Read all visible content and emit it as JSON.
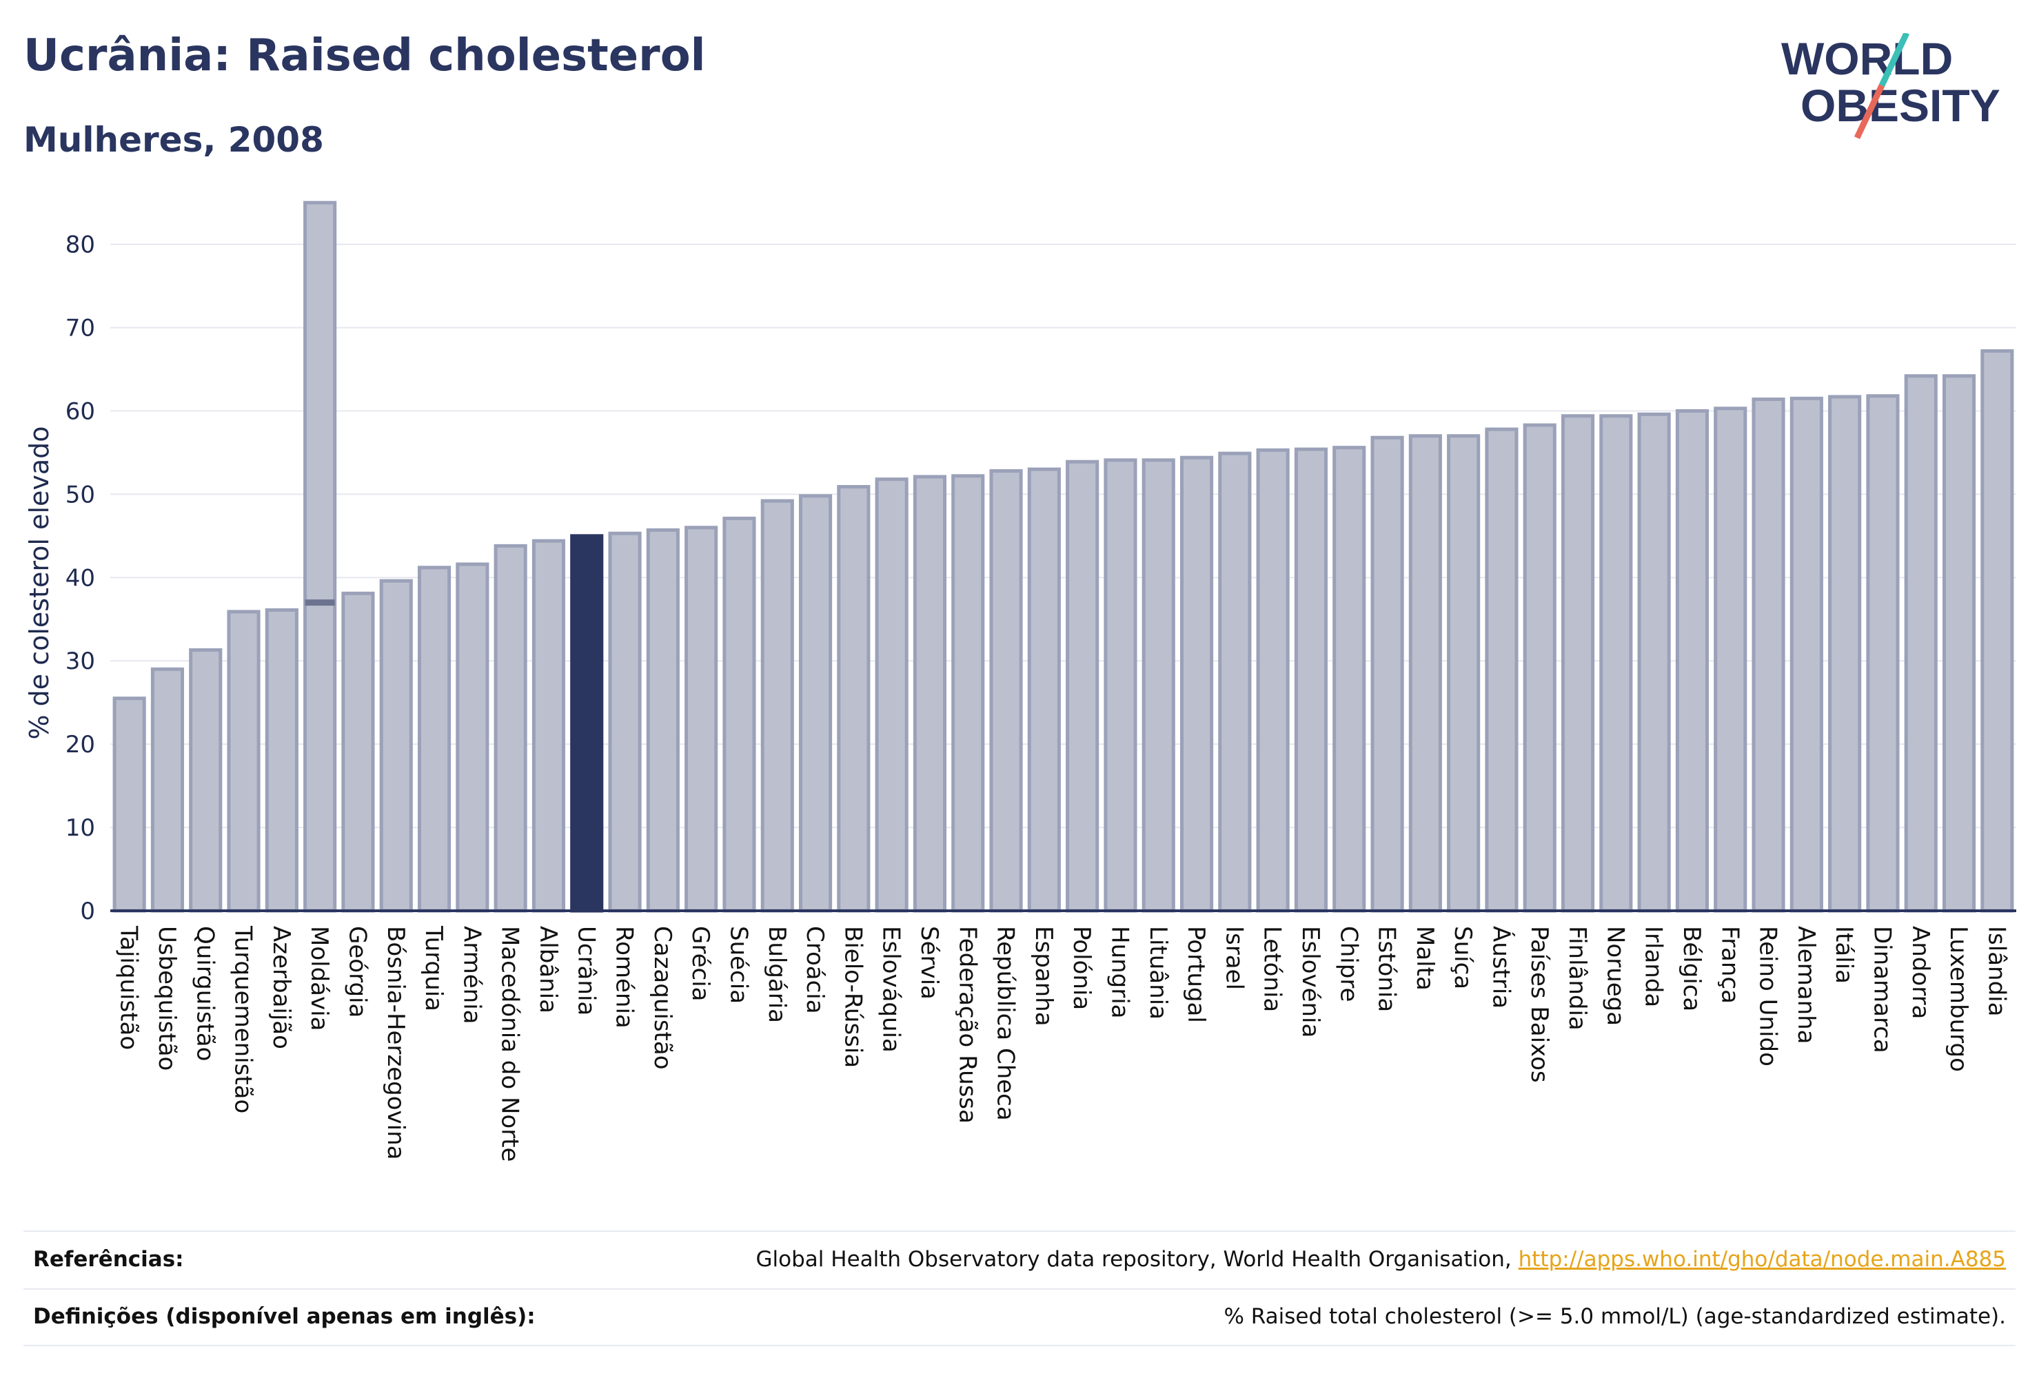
{
  "header": {
    "title": "Ucrânia: Raised cholesterol",
    "subtitle": "Mulheres, 2008"
  },
  "logo": {
    "line1": "WORLD",
    "line2": "OBESITY"
  },
  "colors": {
    "bar_fill": "#bcc0ce",
    "bar_stroke": "#9aa1b8",
    "highlight": "#2a3560",
    "grid": "#e6e8ef",
    "axis_text": "#1f2a4f",
    "link": "#e6a419",
    "logo_teal": "#3bbfb6",
    "logo_red": "#e8685a"
  },
  "chart_data": {
    "type": "bar",
    "ylabel": "% de colesterol elevado",
    "ylim": [
      0,
      87
    ],
    "yticks": [
      0,
      10,
      20,
      30,
      40,
      50,
      60,
      70,
      80
    ],
    "grid": true,
    "highlight": "Ucrânia",
    "categories": [
      "Tajiquistão",
      "Usbequistão",
      "Quirguistão",
      "Turquemenistão",
      "Azerbaijão",
      "Moldávia",
      "Geórgia",
      "Bósnia-Herzegovina",
      "Turquia",
      "Arménia",
      "Macedónia do Norte",
      "Albânia",
      "Ucrânia",
      "Roménia",
      "Cazaquistão",
      "Grécia",
      "Suécia",
      "Bulgária",
      "Croácia",
      "Bielo-Rússia",
      "Eslováquia",
      "Sérvia",
      "Federação Russa",
      "República Checa",
      "Espanha",
      "Polónia",
      "Hungria",
      "Lituânia",
      "Portugal",
      "Israel",
      "Letónia",
      "Eslovénia",
      "Chipre",
      "Estónia",
      "Malta",
      "Suíça",
      "Áustria",
      "Países Baixos",
      "Finlândia",
      "Noruega",
      "Irlanda",
      "Bélgica",
      "França",
      "Reino Unido",
      "Alemanha",
      "Itália",
      "Dinamarca",
      "Andorra",
      "Luxemburgo",
      "Islândia"
    ],
    "values": [
      25.5,
      29.0,
      31.3,
      35.9,
      36.1,
      85.0,
      38.1,
      39.6,
      41.2,
      41.6,
      43.8,
      44.4,
      45.0,
      45.3,
      45.7,
      46.0,
      47.1,
      49.2,
      49.8,
      50.9,
      51.8,
      52.1,
      52.2,
      52.8,
      53.0,
      53.9,
      54.1,
      54.1,
      54.4,
      54.9,
      55.3,
      55.4,
      55.6,
      56.8,
      57.0,
      57.0,
      57.8,
      58.3,
      59.4,
      59.4,
      59.6,
      60.0,
      60.3,
      61.4,
      61.5,
      61.7,
      61.8,
      64.2,
      64.2,
      67.2
    ],
    "error_low": {
      "Moldávia": 37.0
    }
  },
  "footer": {
    "references_label": "Referências:",
    "references_text": "Global Health Observatory data repository, World Health Organisation, ",
    "references_link": "http://apps.who.int/gho/data/node.main.A885",
    "definitions_label": "Definições (disponível apenas em inglês):",
    "definitions_text": "% Raised total cholesterol (>= 5.0 mmol/L) (age-standardized estimate)."
  }
}
